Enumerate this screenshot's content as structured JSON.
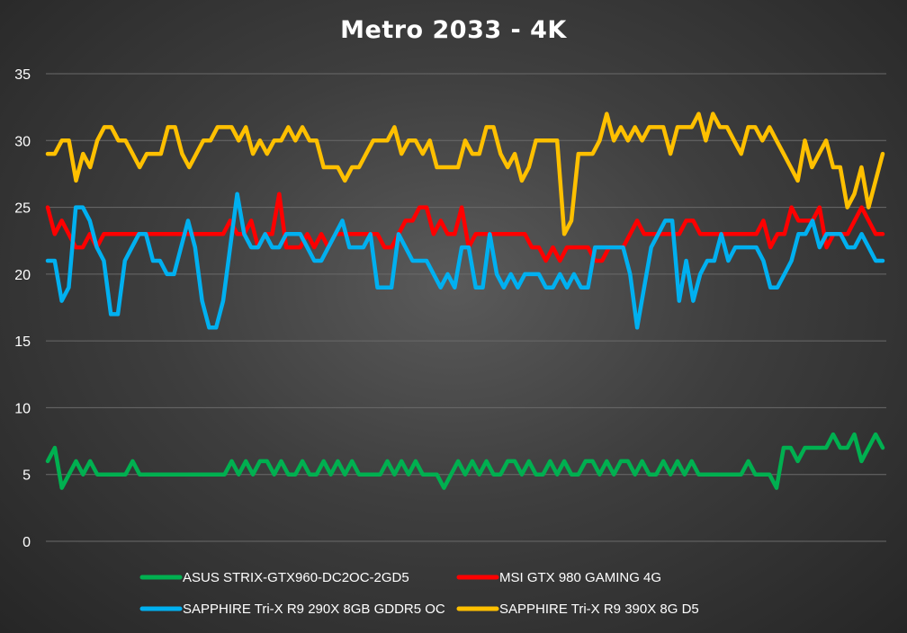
{
  "chart_data": {
    "type": "line",
    "title": "Metro 2033 - 4K",
    "xlabel": "",
    "ylabel": "",
    "ylim": [
      0,
      35
    ],
    "yticks": [
      0,
      5,
      10,
      15,
      20,
      25,
      30,
      35
    ],
    "grid": true,
    "legend": "bottom",
    "series": [
      {
        "name": "ASUS STRIX-GTX960-DC2OC-2GD5",
        "color": "#00b050",
        "values": [
          6,
          7,
          4,
          5,
          6,
          5,
          6,
          5,
          5,
          5,
          5,
          5,
          6,
          5,
          5,
          5,
          5,
          5,
          5,
          5,
          5,
          5,
          5,
          5,
          5,
          5,
          6,
          5,
          6,
          5,
          6,
          6,
          5,
          6,
          5,
          5,
          6,
          5,
          5,
          6,
          5,
          6,
          5,
          6,
          5,
          5,
          5,
          5,
          6,
          5,
          6,
          5,
          6,
          5,
          5,
          5,
          4,
          5,
          6,
          5,
          6,
          5,
          6,
          5,
          5,
          6,
          6,
          5,
          6,
          5,
          5,
          6,
          5,
          6,
          5,
          5,
          6,
          6,
          5,
          6,
          5,
          6,
          6,
          5,
          6,
          5,
          5,
          6,
          5,
          6,
          5,
          6,
          5,
          5,
          5,
          5,
          5,
          5,
          5,
          6,
          5,
          5,
          5,
          4,
          7,
          7,
          6,
          7,
          7,
          7,
          7,
          8,
          7,
          7,
          8,
          6,
          7,
          8,
          7
        ]
      },
      {
        "name": "MSI GTX 980 GAMING 4G",
        "color": "#ff0000",
        "values": [
          25,
          23,
          24,
          23,
          22,
          22,
          23,
          22,
          23,
          23,
          23,
          23,
          23,
          23,
          23,
          23,
          23,
          23,
          23,
          23,
          23,
          23,
          23,
          23,
          23,
          23,
          24,
          23,
          23,
          24,
          22,
          23,
          23,
          26,
          22,
          22,
          22,
          23,
          22,
          23,
          22,
          23,
          23,
          23,
          23,
          23,
          23,
          23,
          22,
          22,
          23,
          24,
          24,
          25,
          25,
          23,
          24,
          23,
          23,
          25,
          22,
          23,
          23,
          23,
          23,
          23,
          23,
          23,
          23,
          22,
          22,
          21,
          22,
          21,
          22,
          22,
          22,
          22,
          21,
          21,
          22,
          22,
          22,
          23,
          24,
          23,
          23,
          23,
          23,
          23,
          23,
          24,
          24,
          23,
          23,
          23,
          23,
          23,
          23,
          23,
          23,
          23,
          24,
          22,
          23,
          23,
          25,
          24,
          24,
          24,
          25,
          22,
          23,
          23,
          23,
          24,
          25,
          24,
          23,
          23
        ]
      },
      {
        "name": "SAPPHIRE Tri-X R9 290X 8GB GDDR5 OC",
        "color": "#00b0f0",
        "values": [
          21,
          21,
          18,
          19,
          25,
          25,
          24,
          22,
          21,
          17,
          17,
          21,
          22,
          23,
          23,
          21,
          21,
          20,
          20,
          22,
          24,
          22,
          18,
          16,
          16,
          18,
          22,
          26,
          23,
          22,
          22,
          23,
          22,
          22,
          23,
          23,
          23,
          22,
          21,
          21,
          22,
          23,
          24,
          22,
          22,
          22,
          23,
          19,
          19,
          19,
          23,
          22,
          21,
          21,
          21,
          20,
          19,
          20,
          19,
          22,
          22,
          19,
          19,
          23,
          20,
          19,
          20,
          19,
          20,
          20,
          20,
          19,
          19,
          20,
          19,
          20,
          19,
          19,
          22,
          22,
          22,
          22,
          22,
          20,
          16,
          19,
          22,
          23,
          24,
          24,
          18,
          21,
          18,
          20,
          21,
          21,
          23,
          21,
          22,
          22,
          22,
          22,
          21,
          19,
          19,
          20,
          21,
          23,
          23,
          24,
          22,
          23,
          23,
          23,
          22,
          22,
          23,
          22,
          21,
          21
        ]
      },
      {
        "name": "SAPPHIRE Tri-X R9 390X 8G D5",
        "color": "#ffc000",
        "values": [
          29,
          29,
          30,
          30,
          27,
          29,
          28,
          30,
          31,
          31,
          30,
          30,
          29,
          28,
          29,
          29,
          29,
          31,
          31,
          29,
          28,
          29,
          30,
          30,
          31,
          31,
          31,
          30,
          31,
          29,
          30,
          29,
          30,
          30,
          31,
          30,
          31,
          30,
          30,
          28,
          28,
          28,
          27,
          28,
          28,
          29,
          30,
          30,
          30,
          31,
          29,
          30,
          30,
          29,
          30,
          28,
          28,
          28,
          28,
          30,
          29,
          29,
          31,
          31,
          29,
          28,
          29,
          27,
          28,
          30,
          30,
          30,
          30,
          23,
          24,
          29,
          29,
          29,
          30,
          32,
          30,
          31,
          30,
          31,
          30,
          31,
          31,
          31,
          29,
          31,
          31,
          31,
          32,
          30,
          32,
          31,
          31,
          30,
          29,
          31,
          31,
          30,
          31,
          30,
          29,
          28,
          27,
          30,
          28,
          29,
          30,
          28,
          28,
          25,
          26,
          28,
          25,
          27,
          29
        ]
      }
    ]
  }
}
